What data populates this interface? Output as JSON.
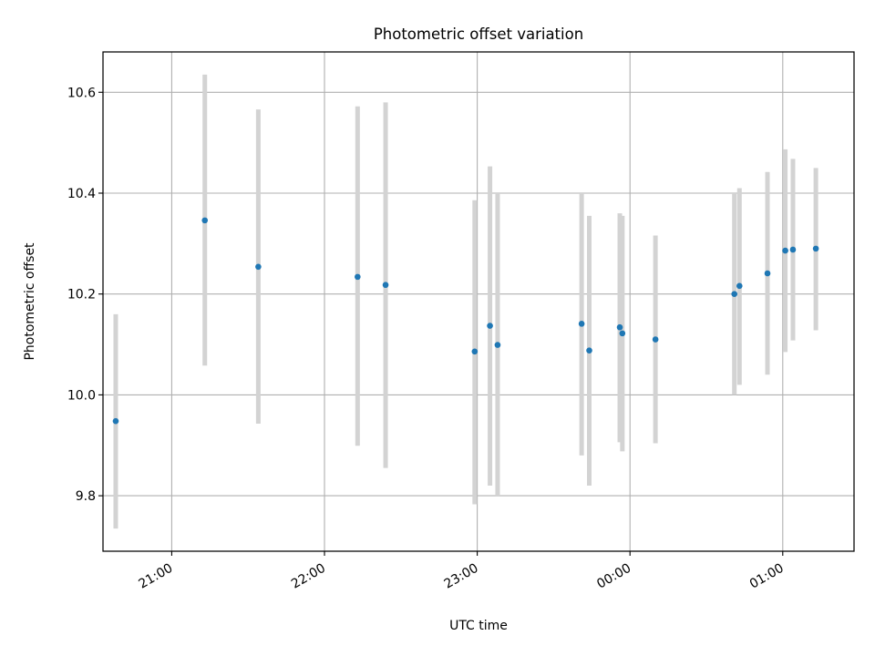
{
  "chart_data": {
    "type": "scatter",
    "title": "Photometric offset variation",
    "xlabel": "UTC time",
    "ylabel": "Photometric offset",
    "x_ticks": [
      "21:00",
      "22:00",
      "23:00",
      "00:00",
      "01:00"
    ],
    "y_ticks": [
      "9.8",
      "10.0",
      "10.2",
      "10.4",
      "10.6"
    ],
    "xlim": [
      "20:33",
      "01:28"
    ],
    "ylim": [
      9.69,
      10.68
    ],
    "grid": true,
    "colors": {
      "marker": "#1f77b4",
      "errorbar": "#d3d3d3",
      "grid": "#b0b0b0"
    },
    "series": [
      {
        "points": [
          {
            "x": "20:38",
            "y": 9.948,
            "lo": 9.735,
            "hi": 10.16
          },
          {
            "x": "21:13",
            "y": 10.346,
            "lo": 10.058,
            "hi": 10.635
          },
          {
            "x": "21:34",
            "y": 10.254,
            "lo": 9.943,
            "hi": 10.566
          },
          {
            "x": "22:13",
            "y": 10.234,
            "lo": 9.899,
            "hi": 10.572
          },
          {
            "x": "22:24",
            "y": 10.218,
            "lo": 9.855,
            "hi": 10.58
          },
          {
            "x": "22:59",
            "y": 10.086,
            "lo": 9.783,
            "hi": 10.386
          },
          {
            "x": "23:05",
            "y": 10.137,
            "lo": 9.82,
            "hi": 10.453
          },
          {
            "x": "23:08",
            "y": 10.099,
            "lo": 9.8,
            "hi": 10.4
          },
          {
            "x": "23:41",
            "y": 10.141,
            "lo": 9.88,
            "hi": 10.4
          },
          {
            "x": "23:44",
            "y": 10.088,
            "lo": 9.82,
            "hi": 10.355
          },
          {
            "x": "23:56",
            "y": 10.134,
            "lo": 9.906,
            "hi": 10.36
          },
          {
            "x": "23:57",
            "y": 10.122,
            "lo": 9.888,
            "hi": 10.355
          },
          {
            "x": "00:10",
            "y": 10.11,
            "lo": 9.904,
            "hi": 10.316
          },
          {
            "x": "00:41",
            "y": 10.2,
            "lo": 10.0,
            "hi": 10.4
          },
          {
            "x": "00:43",
            "y": 10.216,
            "lo": 10.02,
            "hi": 10.41
          },
          {
            "x": "00:54",
            "y": 10.241,
            "lo": 10.04,
            "hi": 10.442
          },
          {
            "x": "01:01",
            "y": 10.286,
            "lo": 10.085,
            "hi": 10.487
          },
          {
            "x": "01:04",
            "y": 10.288,
            "lo": 10.108,
            "hi": 10.468
          },
          {
            "x": "01:13",
            "y": 10.29,
            "lo": 10.128,
            "hi": 10.45
          }
        ]
      }
    ]
  }
}
